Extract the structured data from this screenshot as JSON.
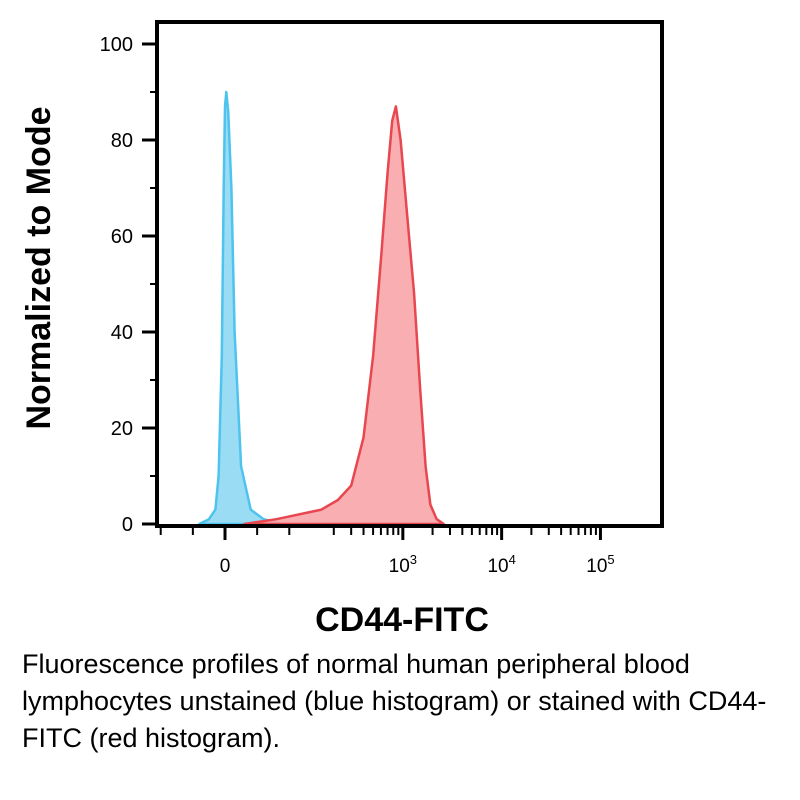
{
  "chart_data": {
    "type": "area",
    "title": "",
    "xlabel": "CD44-FITC",
    "ylabel": "Normalized to Mode",
    "x_scale": "biexponential",
    "ylim": [
      0,
      100
    ],
    "y_ticks": [
      "0",
      "20",
      "40",
      "60",
      "80",
      "100"
    ],
    "x_tick_labels": [
      {
        "base": "0",
        "exp": "",
        "value": 0
      },
      {
        "base": "10",
        "exp": "3",
        "value": 1000
      },
      {
        "base": "10",
        "exp": "4",
        "value": 10000
      },
      {
        "base": "10",
        "exp": "5",
        "value": 100000
      }
    ],
    "grid": false,
    "series": [
      {
        "color": "#4dc3ee",
        "fill": "#8fd8f3",
        "x": [
          -40,
          -25,
          -15,
          -10,
          -5,
          -2,
          0,
          2,
          5,
          10,
          15,
          25,
          40,
          60,
          90
        ],
        "y": [
          0,
          1,
          3,
          10,
          35,
          70,
          87,
          90,
          86,
          70,
          40,
          12,
          3,
          1,
          0
        ]
      },
      {
        "color": "#e8474f",
        "fill": "#f8a5a8",
        "x": [
          30,
          80,
          150,
          220,
          300,
          400,
          500,
          600,
          700,
          780,
          850,
          950,
          1100,
          1300,
          1500,
          1700,
          1900,
          2200,
          2600
        ],
        "y": [
          0,
          1,
          3,
          5,
          8,
          18,
          35,
          55,
          73,
          84,
          87,
          80,
          65,
          48,
          28,
          12,
          4,
          1,
          0
        ]
      }
    ]
  },
  "caption": "Fluorescence profiles of normal human peripheral blood lymphocytes unstained (blue histogram) or stained with CD44-FITC (red histogram)."
}
